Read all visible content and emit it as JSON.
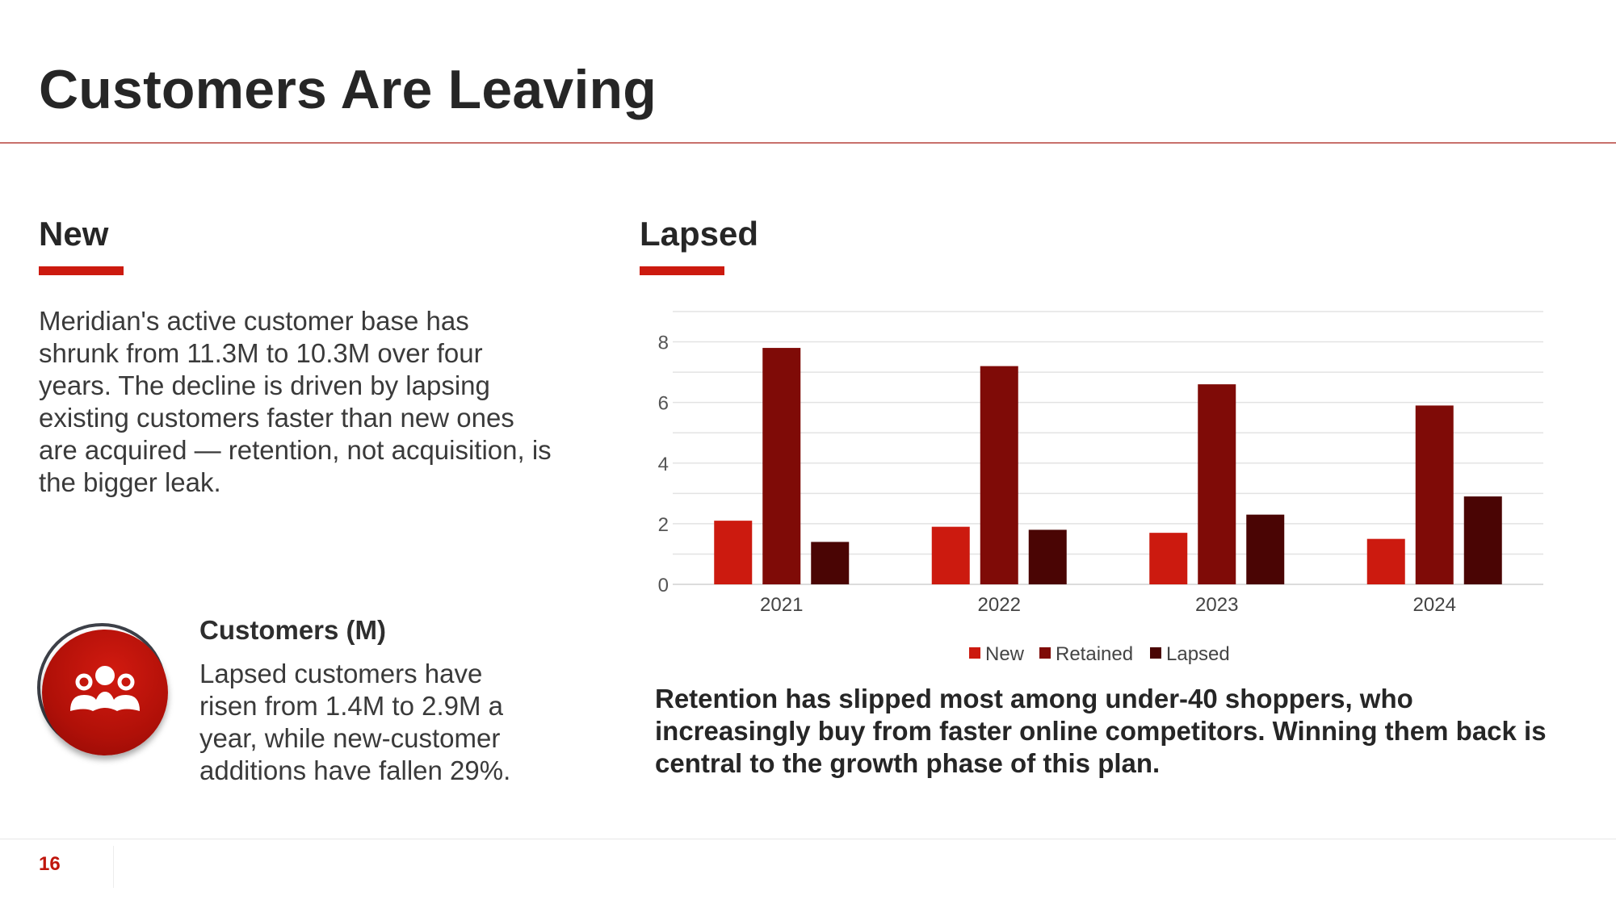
{
  "slide": {
    "title": "Customers Are Leaving",
    "page_number": "16"
  },
  "left": {
    "heading": "New",
    "body": "Meridian's active customer base has shrunk from 11.3M to 10.3M over four years. The decline is driven by lapsing existing customers faster than new ones are acquired — retention, not acquisition, is the bigger leak.",
    "icon": "people-group-icon",
    "stat_label": "Customers (M)",
    "stat_text": "Lapsed customers have risen from 1.4M to 2.9M a year, while new-customer additions have fallen 29%."
  },
  "right": {
    "heading": "Lapsed",
    "caption": "Retention has slipped most among under-40 shoppers, who increasingly buy from faster online competitors. Winning them back is central to the growth phase of this plan."
  },
  "colors": {
    "accent": "#cc1a0f",
    "new": "#cc1a0f",
    "retained": "#7f0b07",
    "lapsed": "#4a0504"
  },
  "chart_data": {
    "type": "bar",
    "title": "",
    "xlabel": "",
    "ylabel": "",
    "categories": [
      "2021",
      "2022",
      "2023",
      "2024"
    ],
    "series": [
      {
        "name": "New",
        "values": [
          2.1,
          1.9,
          1.7,
          1.5
        ],
        "color": "#cc1a0f"
      },
      {
        "name": "Retained",
        "values": [
          7.8,
          7.2,
          6.6,
          5.9
        ],
        "color": "#7f0b07"
      },
      {
        "name": "Lapsed",
        "values": [
          1.4,
          1.8,
          2.3,
          2.9
        ],
        "color": "#4a0504"
      }
    ],
    "ylim": [
      0,
      9
    ],
    "yticks": [
      "0",
      "2",
      "4",
      "6",
      "8"
    ],
    "grid": true,
    "legend": "bottom-center"
  }
}
